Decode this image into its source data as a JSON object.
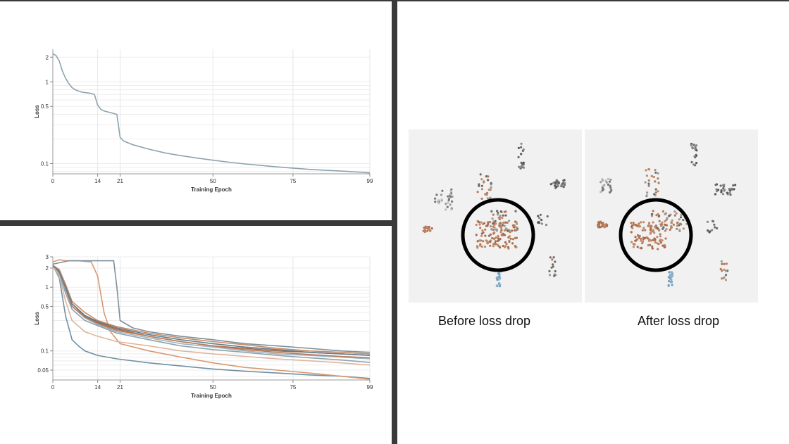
{
  "chart_data": [
    {
      "type": "line",
      "xlabel": "Training Epoch",
      "ylabel": "Loss",
      "yscale": "log",
      "xlim": [
        0,
        99
      ],
      "ylim": [
        0.075,
        2.5
      ],
      "x_ticks": [
        "0",
        "14",
        "21",
        "50",
        "75",
        "99"
      ],
      "y_ticks": [
        "0.1",
        "0.5",
        "1",
        "2"
      ],
      "grid": true,
      "series": [
        {
          "color": "#8ba3b0",
          "x": [
            0,
            1,
            2,
            3,
            4,
            5,
            6,
            7,
            8,
            9,
            10,
            11,
            12,
            13,
            14,
            15,
            16,
            17,
            18,
            19,
            20,
            21,
            22,
            25,
            30,
            35,
            40,
            45,
            50,
            55,
            60,
            65,
            70,
            75,
            80,
            85,
            90,
            95,
            99
          ],
          "y": [
            2.2,
            2.1,
            1.8,
            1.35,
            1.1,
            0.95,
            0.85,
            0.8,
            0.77,
            0.75,
            0.74,
            0.73,
            0.72,
            0.7,
            0.52,
            0.46,
            0.44,
            0.43,
            0.42,
            0.41,
            0.4,
            0.21,
            0.19,
            0.17,
            0.15,
            0.135,
            0.125,
            0.117,
            0.11,
            0.104,
            0.099,
            0.095,
            0.091,
            0.088,
            0.085,
            0.083,
            0.081,
            0.079,
            0.077
          ]
        }
      ]
    },
    {
      "type": "line",
      "xlabel": "Training Epoch",
      "ylabel": "Loss",
      "yscale": "log",
      "xlim": [
        0,
        99
      ],
      "ylim": [
        0.035,
        3.0
      ],
      "x_ticks": [
        "0",
        "14",
        "21",
        "50",
        "75",
        "99"
      ],
      "y_ticks": [
        "0.05",
        "0.1",
        "0.5",
        "1",
        "2",
        "3"
      ],
      "grid": true,
      "series": [
        {
          "color": "#6f8fa3",
          "x": [
            0,
            2,
            4,
            6,
            8,
            10,
            14,
            20,
            30,
            40,
            50,
            60,
            70,
            80,
            90,
            99
          ],
          "y": [
            2.2,
            1.4,
            0.35,
            0.15,
            0.12,
            0.1,
            0.085,
            0.075,
            0.065,
            0.058,
            0.052,
            0.048,
            0.045,
            0.042,
            0.04,
            0.037
          ]
        },
        {
          "color": "#d8986f",
          "x": [
            0,
            2,
            4,
            8,
            12,
            14,
            16,
            18,
            21,
            30,
            40,
            50,
            60,
            70,
            80,
            90,
            99
          ],
          "y": [
            2.5,
            2.7,
            2.6,
            2.6,
            2.5,
            1.5,
            0.4,
            0.2,
            0.13,
            0.1,
            0.08,
            0.065,
            0.055,
            0.05,
            0.045,
            0.04,
            0.036
          ]
        },
        {
          "color": "#7d8f9a",
          "x": [
            0,
            5,
            10,
            15,
            19,
            20,
            21,
            25,
            30,
            40,
            50,
            60,
            70,
            80,
            90,
            99
          ],
          "y": [
            2.3,
            2.6,
            2.6,
            2.6,
            2.6,
            1.0,
            0.3,
            0.23,
            0.2,
            0.17,
            0.15,
            0.13,
            0.12,
            0.11,
            0.1,
            0.095
          ]
        },
        {
          "color": "#a8643e",
          "x": [
            0,
            2,
            4,
            6,
            10,
            14,
            20,
            30,
            40,
            50,
            60,
            70,
            80,
            90,
            99
          ],
          "y": [
            2.2,
            1.8,
            1.0,
            0.55,
            0.35,
            0.28,
            0.22,
            0.17,
            0.14,
            0.12,
            0.11,
            0.1,
            0.095,
            0.09,
            0.085
          ]
        },
        {
          "color": "#c78a62",
          "x": [
            0,
            2,
            4,
            6,
            10,
            14,
            20,
            30,
            40,
            50,
            60,
            70,
            80,
            90,
            99
          ],
          "y": [
            2.2,
            1.9,
            1.1,
            0.6,
            0.4,
            0.3,
            0.24,
            0.19,
            0.16,
            0.14,
            0.125,
            0.11,
            0.1,
            0.095,
            0.09
          ]
        },
        {
          "color": "#9fb3c0",
          "x": [
            0,
            2,
            4,
            6,
            10,
            14,
            20,
            30,
            40,
            50,
            60,
            70,
            80,
            90,
            99
          ],
          "y": [
            2.2,
            1.7,
            0.9,
            0.5,
            0.33,
            0.26,
            0.2,
            0.16,
            0.13,
            0.115,
            0.1,
            0.09,
            0.085,
            0.08,
            0.075
          ]
        },
        {
          "color": "#8ba3b0",
          "x": [
            0,
            2,
            4,
            6,
            10,
            14,
            20,
            30,
            40,
            50,
            60,
            70,
            80,
            90,
            99
          ],
          "y": [
            2.2,
            1.6,
            0.8,
            0.45,
            0.3,
            0.25,
            0.19,
            0.15,
            0.12,
            0.105,
            0.095,
            0.085,
            0.078,
            0.072,
            0.066
          ]
        },
        {
          "color": "#b97a58",
          "x": [
            0,
            2,
            4,
            6,
            10,
            14,
            20,
            30,
            40,
            50,
            60,
            70,
            80,
            90,
            99
          ],
          "y": [
            2.2,
            1.8,
            0.95,
            0.5,
            0.34,
            0.27,
            0.21,
            0.17,
            0.14,
            0.12,
            0.105,
            0.095,
            0.088,
            0.082,
            0.078
          ]
        },
        {
          "color": "#e0b59a",
          "x": [
            0,
            2,
            4,
            6,
            10,
            14,
            20,
            30,
            40,
            50,
            60,
            70,
            80,
            90,
            99
          ],
          "y": [
            2.2,
            1.5,
            0.6,
            0.3,
            0.2,
            0.17,
            0.14,
            0.12,
            0.1,
            0.09,
            0.082,
            0.075,
            0.07,
            0.065,
            0.06
          ]
        },
        {
          "color": "#5f7e92",
          "x": [
            0,
            2,
            4,
            6,
            10,
            14,
            20,
            30,
            40,
            50,
            60,
            70,
            80,
            90,
            99
          ],
          "y": [
            2.2,
            1.75,
            1.0,
            0.55,
            0.36,
            0.29,
            0.23,
            0.18,
            0.15,
            0.13,
            0.115,
            0.105,
            0.095,
            0.09,
            0.085
          ]
        }
      ]
    },
    {
      "type": "scatter",
      "caption": "Before loss drop"
    },
    {
      "type": "scatter",
      "caption": "After loss drop"
    }
  ]
}
